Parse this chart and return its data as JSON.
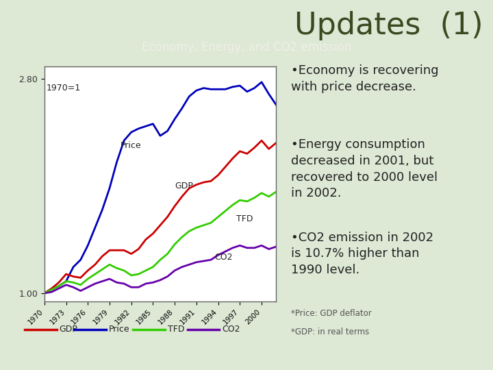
{
  "title": "Updates  (1)",
  "subtitle": "Economy, Energy, and CO2 emission",
  "title_fontsize": 32,
  "subtitle_fontsize": 12,
  "bg_color": "#dde8d5",
  "chart_bg": "#ffffff",
  "years": [
    1970,
    1971,
    1972,
    1973,
    1974,
    1975,
    1976,
    1977,
    1978,
    1979,
    1980,
    1981,
    1982,
    1983,
    1984,
    1985,
    1986,
    1987,
    1988,
    1989,
    1990,
    1991,
    1992,
    1993,
    1994,
    1995,
    1996,
    1997,
    1998,
    1999,
    2000,
    2001,
    2002
  ],
  "GDP": [
    1.0,
    1.04,
    1.09,
    1.16,
    1.14,
    1.13,
    1.19,
    1.24,
    1.31,
    1.36,
    1.36,
    1.36,
    1.33,
    1.37,
    1.45,
    1.5,
    1.57,
    1.64,
    1.73,
    1.81,
    1.88,
    1.91,
    1.93,
    1.94,
    1.99,
    2.06,
    2.13,
    2.19,
    2.17,
    2.22,
    2.28,
    2.21,
    2.26
  ],
  "Price": [
    1.0,
    1.03,
    1.06,
    1.1,
    1.22,
    1.28,
    1.4,
    1.55,
    1.7,
    1.88,
    2.1,
    2.28,
    2.35,
    2.38,
    2.4,
    2.42,
    2.32,
    2.36,
    2.46,
    2.55,
    2.65,
    2.7,
    2.72,
    2.71,
    2.71,
    2.71,
    2.73,
    2.74,
    2.69,
    2.72,
    2.77,
    2.67,
    2.58
  ],
  "TFD": [
    1.0,
    1.03,
    1.06,
    1.1,
    1.09,
    1.07,
    1.12,
    1.16,
    1.2,
    1.24,
    1.21,
    1.19,
    1.15,
    1.16,
    1.19,
    1.22,
    1.28,
    1.33,
    1.41,
    1.47,
    1.52,
    1.55,
    1.57,
    1.59,
    1.64,
    1.69,
    1.74,
    1.78,
    1.77,
    1.8,
    1.84,
    1.81,
    1.85
  ],
  "CO2": [
    1.0,
    1.01,
    1.04,
    1.07,
    1.05,
    1.02,
    1.05,
    1.08,
    1.1,
    1.12,
    1.09,
    1.08,
    1.05,
    1.05,
    1.08,
    1.09,
    1.11,
    1.14,
    1.19,
    1.22,
    1.24,
    1.26,
    1.27,
    1.28,
    1.32,
    1.35,
    1.38,
    1.4,
    1.38,
    1.38,
    1.4,
    1.37,
    1.39
  ],
  "gdp_color": "#cc0000",
  "price_color": "#0000bb",
  "tfd_color": "#33cc00",
  "co2_color": "#6600aa",
  "ylim_min": 0.93,
  "ylim_max": 2.9,
  "title_color": "#3a4a20",
  "text_color": "#222222",
  "footnote1": "*Price: GDP deflator",
  "footnote2": "*GDP: in real terms",
  "subtitle_bar_color": "#8a9a7a"
}
